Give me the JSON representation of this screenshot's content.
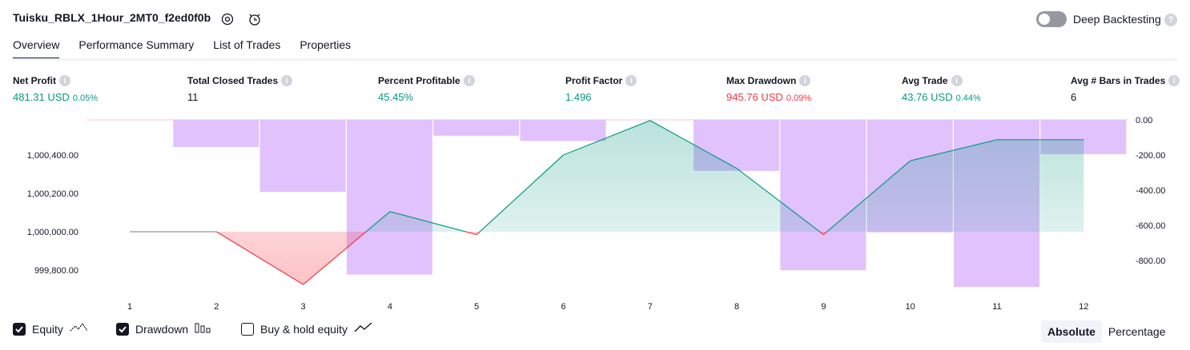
{
  "header": {
    "title": "Tuisku_RBLX_1Hour_2MT0_f2ed0f0b",
    "deep_backtesting_label": "Deep Backtesting",
    "deep_backtesting_on": false
  },
  "tabs": [
    {
      "label": "Overview",
      "active": true
    },
    {
      "label": "Performance Summary",
      "active": false
    },
    {
      "label": "List of Trades",
      "active": false
    },
    {
      "label": "Properties",
      "active": false
    }
  ],
  "metrics": [
    {
      "label": "Net Profit",
      "value": "481.31 USD",
      "pct": "0.05%",
      "color": "green"
    },
    {
      "label": "Total Closed Trades",
      "value": "11",
      "pct": "",
      "color": "dark"
    },
    {
      "label": "Percent Profitable",
      "value": "45.45%",
      "pct": "",
      "color": "green"
    },
    {
      "label": "Profit Factor",
      "value": "1.496",
      "pct": "",
      "color": "green"
    },
    {
      "label": "Max Drawdown",
      "value": "945.76 USD",
      "pct": "0.09%",
      "color": "red"
    },
    {
      "label": "Avg Trade",
      "value": "43.76 USD",
      "pct": "0.44%",
      "color": "green"
    },
    {
      "label": "Avg # Bars in Trades",
      "value": "6",
      "pct": "",
      "color": "dark"
    }
  ],
  "chart_data": {
    "type": "line",
    "x": [
      1,
      2,
      3,
      4,
      5,
      6,
      7,
      8,
      9,
      10,
      11,
      12
    ],
    "equity": [
      1000000,
      1000000,
      999725,
      1000105,
      999985,
      1000400,
      1000580,
      1000330,
      999985,
      1000370,
      1000480,
      1000480
    ],
    "drawdown_bars": [
      0,
      -155,
      -410,
      -880,
      -90,
      -120,
      0,
      -290,
      -855,
      -640,
      -950,
      -195
    ],
    "left_axis_ticks": [
      "1,000,400.00",
      "1,000,200.00",
      "1,000,000.00",
      "999,800.00"
    ],
    "right_axis_ticks": [
      "0.00",
      "-200.00",
      "-400.00",
      "-600.00",
      "-800.00"
    ],
    "colors": {
      "equity_up": "#089981",
      "equity_down": "#f23645",
      "drawdown": "#e1c2fd",
      "baseline": "#9598a1"
    }
  },
  "legend": {
    "equity_label": "Equity",
    "drawdown_label": "Drawdown",
    "buyhold_label": "Buy & hold equity",
    "equity_checked": true,
    "drawdown_checked": true,
    "buyhold_checked": false
  },
  "mode": {
    "absolute": "Absolute",
    "percentage": "Percentage",
    "selected": "absolute"
  }
}
